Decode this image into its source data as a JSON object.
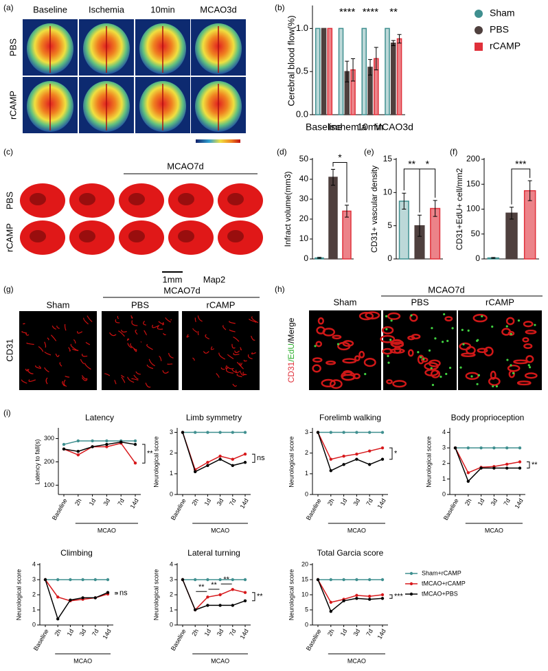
{
  "figure": {
    "panel_labels": [
      "(a)",
      "(b)",
      "(c)",
      "(d)",
      "(e)",
      "(f)",
      "(g)",
      "(h)",
      "(i)"
    ],
    "a": {
      "columns": [
        "Baseline",
        "Ischemia",
        "10min",
        "MCAO3d"
      ],
      "rows": [
        "PBS",
        "rCAMP"
      ]
    },
    "c": {
      "title": "MCAO7d",
      "rows": [
        "PBS",
        "rCAMP"
      ],
      "scale": "1mm",
      "stain": "Map2"
    },
    "g": {
      "columns": [
        "Sham",
        "PBS",
        "rCAMP"
      ],
      "group": "MCAO7d",
      "stain": "CD31"
    },
    "h": {
      "columns": [
        "Sham",
        "PBS",
        "rCAMP"
      ],
      "group": "MCAO7d",
      "stain": [
        "CD31",
        "/EdU",
        "/Merge"
      ]
    }
  },
  "chart_data": [
    {
      "type": "bar",
      "ylabel": "Cerebral blood flow(%)",
      "categories": [
        "Baseline",
        "Ischemia",
        "10min",
        "MCAO3d"
      ],
      "series": [
        {
          "name": "Sham",
          "color": "#3f8f8f",
          "values": [
            1,
            1,
            1,
            1
          ]
        },
        {
          "name": "PBS",
          "color": "#4f403e",
          "values": [
            1,
            0.5,
            0.55,
            0.83
          ],
          "errors": [
            null,
            0.12,
            0.09,
            0.03
          ]
        },
        {
          "name": "rCAMP",
          "color": "#e0303a",
          "values": [
            1,
            0.52,
            0.65,
            0.88
          ],
          "errors": [
            null,
            0.13,
            0.13,
            0.05
          ]
        }
      ],
      "ylim": [
        0,
        1.25
      ],
      "yticks": [
        {
          "value": 0,
          "label": "0.0"
        },
        0.5,
        {
          "value": 1,
          "label": "1.0"
        }
      ],
      "annotations": [
        "****",
        "****",
        "**"
      ]
    },
    {
      "type": "bar",
      "ylabel": "Infract volume(mm3)",
      "values": [
        0.5,
        41,
        24
      ],
      "errors": [
        0.3,
        4,
        3
      ],
      "colors": [
        "#3f8f8f",
        "#4f403e",
        "#e0303a"
      ],
      "ylim": [
        0,
        50
      ],
      "yticks": [
        0,
        10,
        20,
        30,
        40,
        50
      ],
      "annotations": [
        "*"
      ]
    },
    {
      "type": "bar",
      "ylabel": "CD31+ vascular density",
      "values": [
        8.7,
        5,
        7.6
      ],
      "errors": [
        1.2,
        1.6,
        1.2
      ],
      "colors": [
        "#3f8f8f",
        "#4f403e",
        "#e0303a"
      ],
      "ylim": [
        0,
        15
      ],
      "yticks": [
        0,
        5,
        10,
        15
      ],
      "annotations": [
        "**",
        "*"
      ]
    },
    {
      "type": "bar",
      "ylabel": "CD31+EdU+ cell/mm2",
      "values": [
        2,
        92,
        137
      ],
      "errors": [
        1,
        12,
        20
      ],
      "colors": [
        "#3f8f8f",
        "#4f403e",
        "#e0303a"
      ],
      "ylim": [
        0,
        200
      ],
      "yticks": [
        0,
        50,
        100,
        150,
        200
      ],
      "annotations": [
        "***"
      ]
    },
    {
      "type": "line",
      "title": "Latency",
      "ylabel": "Latency to fall(s)",
      "xlabel": "MCAO",
      "categories": [
        "Baseline",
        "2h",
        "1d",
        "3d",
        "7d",
        "14d"
      ],
      "series": [
        {
          "values": [
            275,
            290,
            290,
            290,
            290,
            290
          ]
        },
        {
          "values": [
            255,
            230,
            265,
            265,
            280,
            195
          ]
        },
        {
          "values": [
            255,
            245,
            265,
            275,
            285,
            275
          ]
        }
      ],
      "ylim": [
        60,
        340
      ],
      "yticks": [
        100,
        200,
        300
      ],
      "significance": "**"
    },
    {
      "type": "line",
      "title": "Limb symmetry",
      "ylabel": "Neurological score",
      "xlabel": "MCAO",
      "categories": [
        "Baseline",
        "2h",
        "1d",
        "3d",
        "7d",
        "14d"
      ],
      "series": [
        {
          "values": [
            3,
            3,
            3,
            3,
            3,
            3
          ]
        },
        {
          "values": [
            3,
            1.2,
            1.55,
            1.85,
            1.7,
            1.95
          ]
        },
        {
          "values": [
            3,
            1.1,
            1.4,
            1.7,
            1.4,
            1.55
          ]
        }
      ],
      "ylim": [
        0,
        3.15
      ],
      "yticks": [
        0,
        1,
        2,
        3
      ],
      "significance": "ns"
    },
    {
      "type": "line",
      "title": "Forelimb walking",
      "ylabel": "Neurological score",
      "xlabel": "MCAO",
      "categories": [
        "Baseline",
        "2h",
        "1d",
        "3d",
        "7d",
        "14d"
      ],
      "series": [
        {
          "values": [
            3,
            3,
            3,
            3,
            3,
            3
          ]
        },
        {
          "values": [
            3,
            1.7,
            1.85,
            1.95,
            2.1,
            2.25
          ]
        },
        {
          "values": [
            3,
            1.15,
            1.45,
            1.7,
            1.45,
            1.7
          ]
        }
      ],
      "ylim": [
        0,
        3.15
      ],
      "yticks": [
        0,
        1,
        2,
        3
      ],
      "significance": "*"
    },
    {
      "type": "line",
      "title": "Body proprioception",
      "ylabel": "Neurological score",
      "xlabel": "MCAO",
      "categories": [
        "Baseline",
        "2h",
        "1d",
        "3d",
        "7d",
        "14d"
      ],
      "series": [
        {
          "values": [
            3,
            3,
            3,
            3,
            3,
            3
          ]
        },
        {
          "values": [
            3,
            1.4,
            1.75,
            1.8,
            1.95,
            2.1
          ]
        },
        {
          "values": [
            3,
            0.85,
            1.7,
            1.7,
            1.7,
            1.7
          ]
        }
      ],
      "ylim": [
        0,
        4.2
      ],
      "yticks": [
        0,
        1,
        2,
        3,
        4
      ],
      "significance": "**"
    },
    {
      "type": "line",
      "title": "Climbing",
      "ylabel": "Neurological score",
      "xlabel": "MCAO",
      "categories": [
        "Baseline",
        "2h",
        "1d",
        "3d",
        "7d",
        "14d"
      ],
      "series": [
        {
          "values": [
            3,
            3,
            3,
            3,
            3,
            3
          ]
        },
        {
          "values": [
            3,
            1.85,
            1.6,
            1.7,
            1.8,
            2.05
          ]
        },
        {
          "values": [
            3,
            0.4,
            1.65,
            1.8,
            1.8,
            2.15
          ]
        }
      ],
      "ylim": [
        0,
        4
      ],
      "yticks": [
        0,
        1,
        2,
        3,
        4
      ],
      "significance": "ns"
    },
    {
      "type": "line",
      "title": "Lateral turning",
      "ylabel": "Neurological score",
      "xlabel": "MCAO",
      "categories": [
        "Baseline",
        "2h",
        "1d",
        "3d",
        "7d",
        "14d"
      ],
      "series": [
        {
          "values": [
            3,
            3,
            3,
            3,
            3,
            3
          ]
        },
        {
          "values": [
            3,
            1,
            1.85,
            2,
            2.35,
            2.15
          ]
        },
        {
          "values": [
            3,
            1,
            1.3,
            1.3,
            1.3,
            1.6
          ]
        }
      ],
      "ylim": [
        0,
        4
      ],
      "yticks": [
        0,
        1,
        2,
        3,
        4
      ],
      "significance": "**",
      "annotations": [
        "**",
        "**",
        "**"
      ]
    },
    {
      "type": "line",
      "title": "Total Garcia score",
      "ylabel": "Neurological score",
      "xlabel": "MCAO",
      "categories": [
        "Baseline",
        "2h",
        "1d",
        "3d",
        "7d",
        "14d"
      ],
      "series": [
        {
          "values": [
            15,
            15,
            15,
            15,
            15,
            15
          ]
        },
        {
          "values": [
            15,
            7.5,
            8.5,
            9.8,
            9.5,
            10
          ]
        },
        {
          "values": [
            15,
            4.5,
            8,
            8.8,
            8.5,
            8.8
          ]
        }
      ],
      "ylim": [
        0,
        20
      ],
      "yticks": [
        0,
        5,
        10,
        15,
        20
      ],
      "significance": "***"
    }
  ],
  "line_legend": [
    {
      "name": "Sham+rCAMP",
      "color": "#3f8f8f"
    },
    {
      "name": "tMCAO+rCAMP",
      "color": "#d7191c"
    },
    {
      "name": "tMCAO+PBS",
      "color": "#000000"
    }
  ]
}
